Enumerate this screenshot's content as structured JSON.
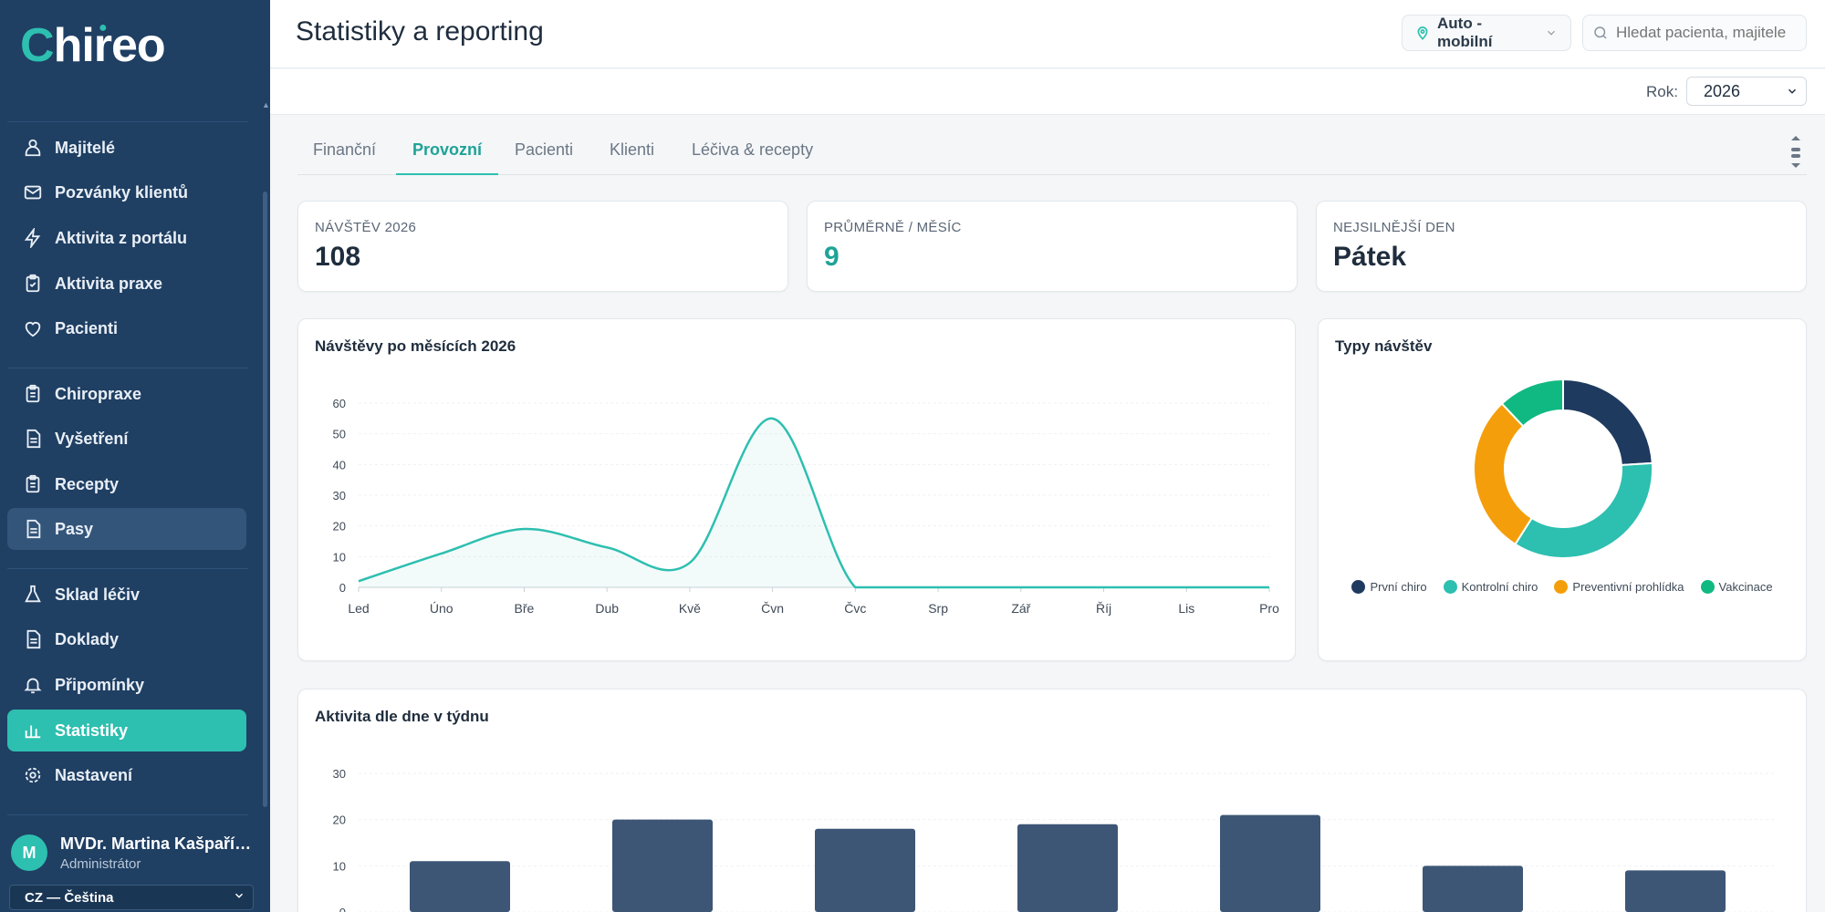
{
  "app": {
    "logo_text": "Chireo",
    "title": "Statistiky a reporting"
  },
  "header": {
    "location_label": "Auto - mobilní",
    "search_placeholder": "Hledat pacienta, majitele"
  },
  "filters": {
    "year_label": "Rok:",
    "year_value": "2026"
  },
  "sidebar": {
    "items": [
      {
        "label": "Majitelé",
        "icon": "owner-icon"
      },
      {
        "label": "Pozvánky klientů",
        "icon": "mail-icon"
      },
      {
        "label": "Aktivita z portálu",
        "icon": "bolt-icon"
      },
      {
        "label": "Aktivita praxe",
        "icon": "clipboard-icon"
      },
      {
        "label": "Pacienti",
        "icon": "heart-icon"
      },
      {
        "label": "Chiropraxe",
        "icon": "clipboard-icon"
      },
      {
        "label": "Vyšetření",
        "icon": "document-icon"
      },
      {
        "label": "Recepty",
        "icon": "clipboard-icon"
      },
      {
        "label": "Pasy",
        "icon": "document-icon"
      },
      {
        "label": "Sklad léčiv",
        "icon": "flask-icon"
      },
      {
        "label": "Doklady",
        "icon": "document-icon"
      },
      {
        "label": "Připomínky",
        "icon": "bell-icon"
      },
      {
        "label": "Statistiky",
        "icon": "bar-chart-icon"
      },
      {
        "label": "Nastavení",
        "icon": "gear-icon"
      }
    ],
    "active": "Statistiky",
    "hovered": "Pasy"
  },
  "user": {
    "initial": "M",
    "name": "MVDr. Martina Kašpaříková",
    "role": "Administrátor"
  },
  "language": "CZ — Čeština",
  "tabs": [
    "Finanční",
    "Provozní",
    "Pacienti",
    "Klienti",
    "Léčiva & recepty"
  ],
  "active_tab": "Provozní",
  "stats": [
    {
      "label": "NÁVŠTĚV 2026",
      "value": "108"
    },
    {
      "label": "PRŮMĚRNĚ / MĚSÍC",
      "value": "9"
    },
    {
      "label": "NEJSILNĚJŠÍ DEN",
      "value": "Pátek"
    }
  ],
  "colors": {
    "accent": "#2dbfb0",
    "sidebar": "#1f3f63",
    "bar": "#3d5676",
    "first_visit": "#1f3a5f",
    "control": "#2dbfb0",
    "preventive": "#f59e0b",
    "vaccination": "#10b981"
  },
  "chart_data": [
    {
      "type": "line",
      "title": "Návštěvy po měsících 2026",
      "categories": [
        "Led",
        "Úno",
        "Bře",
        "Dub",
        "Kvě",
        "Čvn",
        "Čvc",
        "Srp",
        "Zář",
        "Říj",
        "Lis",
        "Pro"
      ],
      "values": [
        2,
        11,
        19,
        13,
        8,
        55,
        0,
        0,
        0,
        0,
        0,
        0
      ],
      "ylim": [
        0,
        60
      ],
      "yticks": [
        0,
        10,
        20,
        30,
        40,
        50,
        60
      ],
      "grid": true
    },
    {
      "type": "pie",
      "title": "Typy návštěv",
      "labels": [
        "První chiro",
        "Kontrolní chiro",
        "Preventivní prohlídka",
        "Vakcinace"
      ],
      "values": [
        24,
        35,
        29,
        12
      ],
      "legend": "bottom"
    },
    {
      "type": "bar",
      "title": "Aktivita dle dne v týdnu",
      "values": [
        11,
        20,
        18,
        19,
        21,
        10,
        9
      ],
      "ylim": [
        0,
        30
      ],
      "yticks": [
        0,
        10,
        20,
        30
      ],
      "grid": true
    }
  ]
}
